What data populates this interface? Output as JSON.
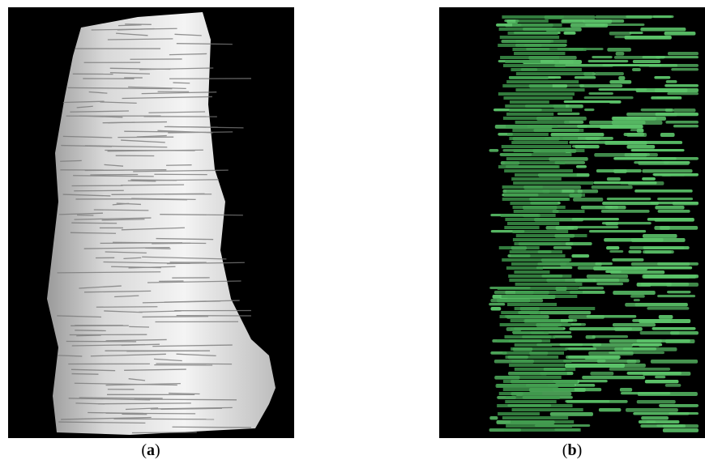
{
  "figure": {
    "panel_a": {
      "caption_open": "(",
      "caption_letter": "a",
      "caption_close": ")",
      "color": "#e6e6e6"
    },
    "panel_b": {
      "caption_open": "(",
      "caption_letter": "b",
      "caption_close": ")",
      "color": "#5cc46a"
    }
  },
  "colors": {
    "background": "#000000",
    "page": "#ffffff"
  }
}
